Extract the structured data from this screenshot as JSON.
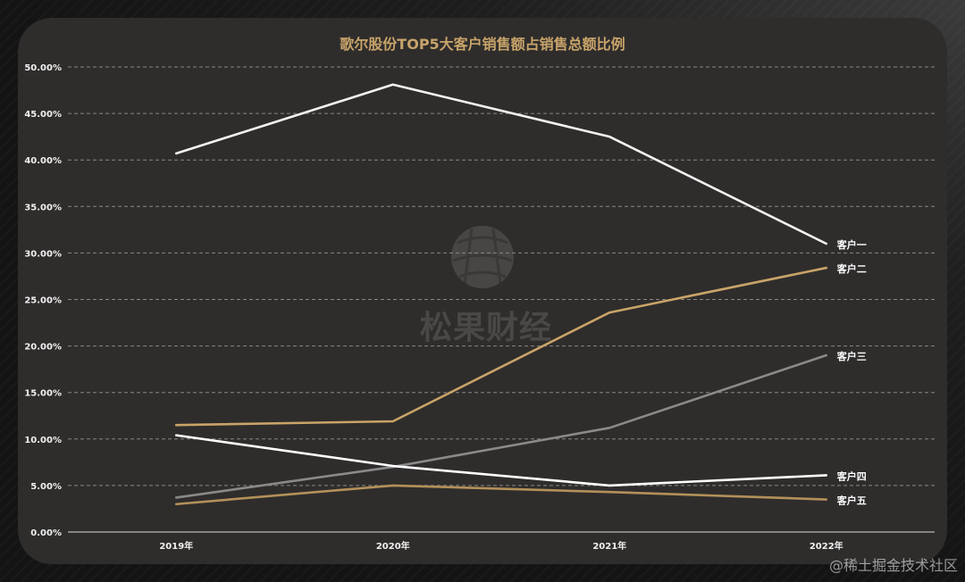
{
  "chart_data": {
    "type": "line",
    "title": "歌尔股份TOP5大客户销售额占销售总额比例",
    "categories": [
      "2019年",
      "2020年",
      "2021年",
      "2022年"
    ],
    "y_ticks": [
      "0.00%",
      "5.00%",
      "10.00%",
      "15.00%",
      "20.00%",
      "25.00%",
      "30.00%",
      "35.00%",
      "40.00%",
      "45.00%",
      "50.00%"
    ],
    "ylim": [
      0,
      50
    ],
    "grid": true,
    "series": [
      {
        "name": "客户一",
        "values": [
          40.7,
          48.1,
          42.5,
          31.0
        ],
        "color": "#f2f2f2"
      },
      {
        "name": "客户二",
        "values": [
          11.5,
          11.9,
          23.6,
          28.4
        ],
        "color": "#c9a468"
      },
      {
        "name": "客户三",
        "values": [
          3.7,
          7.0,
          11.2,
          19.0
        ],
        "color": "#8a8a8a"
      },
      {
        "name": "客户四",
        "values": [
          10.4,
          7.1,
          5.0,
          6.1
        ],
        "color": "#ffffff"
      },
      {
        "name": "客户五",
        "values": [
          3.0,
          5.0,
          4.3,
          3.5
        ],
        "color": "#b39159"
      }
    ]
  },
  "watermark": {
    "text": "松果财经"
  },
  "credit": "@稀土掘金技术社区"
}
